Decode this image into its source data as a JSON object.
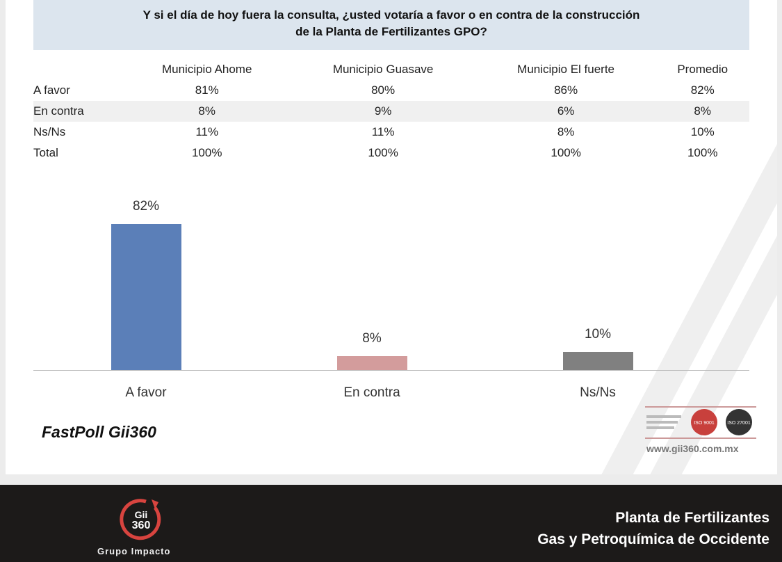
{
  "question": {
    "line1": "Y si el día de hoy fuera la consulta, ¿usted votaría a favor o en contra de la construcción",
    "line2": "de la Planta de Fertilizantes GPO?"
  },
  "table": {
    "headers": [
      "",
      "Municipio Ahome",
      "Municipio Guasave",
      "Municipio El fuerte",
      "Promedio"
    ],
    "rows": [
      [
        "A favor",
        "81%",
        "80%",
        "86%",
        "82%"
      ],
      [
        "En contra",
        "8%",
        "9%",
        "6%",
        "8%"
      ],
      [
        "Ns/Ns",
        "11%",
        "11%",
        "8%",
        "10%"
      ],
      [
        "Total",
        "100%",
        "100%",
        "100%",
        "100%"
      ]
    ]
  },
  "chart_data": {
    "type": "bar",
    "categories": [
      "A favor",
      "En contra",
      "Ns/Ns"
    ],
    "values": [
      82,
      8,
      10
    ],
    "value_labels": [
      "82%",
      "8%",
      "10%"
    ],
    "colors": [
      "#5b7fb8",
      "#d39c9c",
      "#808080"
    ],
    "ylim": [
      0,
      100
    ]
  },
  "brand": "FastPoll Gii360",
  "cert": {
    "badge1": "ISO 9001",
    "badge2": "ISO 27001",
    "url": "www.gii360.com.mx"
  },
  "footer": {
    "logo_text1": "Gii",
    "logo_text2": "360",
    "company": "Grupo Impacto",
    "title1": "Planta de Fertilizantes",
    "title2": "Gas y Petroquímica de Occidente"
  }
}
